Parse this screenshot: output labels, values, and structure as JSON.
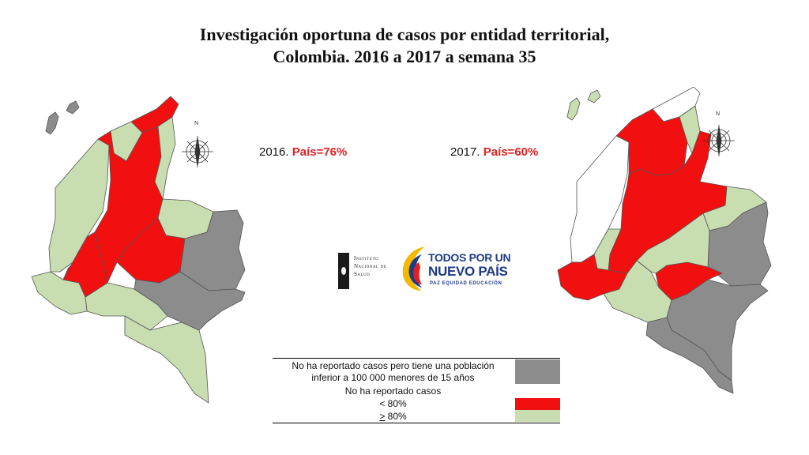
{
  "title": {
    "line1": "Investigación oportuna de casos por entidad territorial,",
    "line2": "Colombia. 2016 a 2017 a semana 35"
  },
  "maps": [
    {
      "year_text": "2016. ",
      "pct_text": "País=76%"
    },
    {
      "year_text": "2017. ",
      "pct_text": "País=60%"
    }
  ],
  "compass_letter": "N",
  "logos": {
    "ins": {
      "line1": "Instituto",
      "line2": "Nacional de",
      "line3": "Salud",
      "icon": "ins-logo-icon"
    },
    "tpun": {
      "line1": "TODOS POR UN",
      "line2": "NUEVO PAÍS",
      "line3": "PAZ  EQUIDAD  EDUCACIÓN",
      "icon": "tpun-logo-icon"
    }
  },
  "legend": {
    "items": [
      {
        "label_line1": "No ha reportado casos pero tiene una población",
        "label_line2": "inferior a 100 000 menores de 15 años",
        "color": "#8c8c8c"
      },
      {
        "label_line1": "No ha reportado casos",
        "color": "#ffffff"
      },
      {
        "label_line1": "< 80%",
        "color": "#f20f0f"
      },
      {
        "label_prefix": ">",
        "label_line1": " 80%",
        "color": "#c8ddb0"
      }
    ]
  },
  "colors": {
    "red": "#f20f0f",
    "green": "#c8ddb0",
    "gray": "#8c8c8c",
    "white": "#ffffff",
    "border": "#555555"
  }
}
